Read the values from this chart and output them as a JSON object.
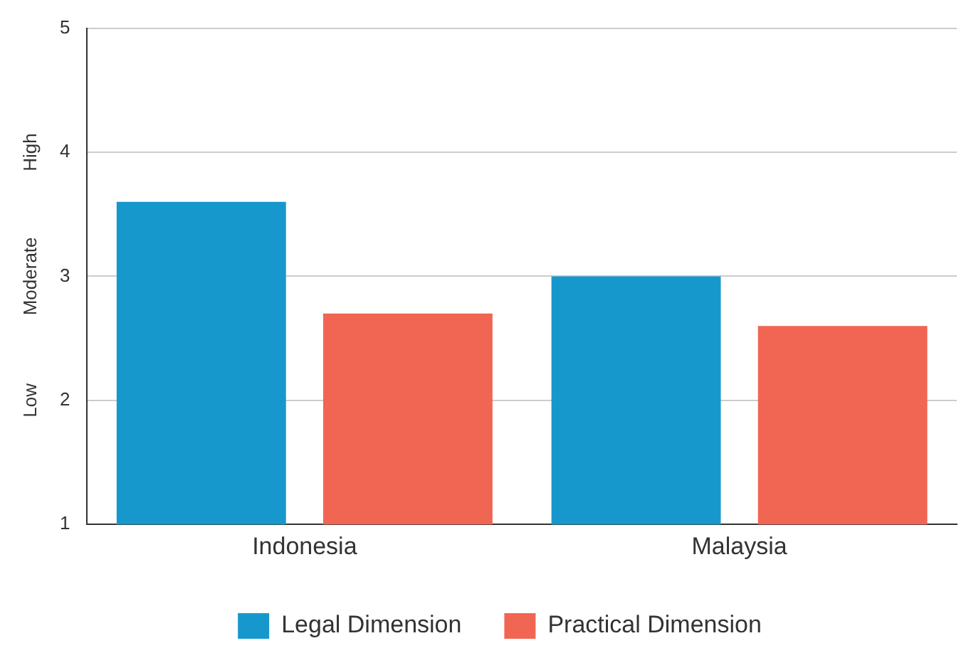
{
  "chart_data": {
    "type": "bar",
    "categories": [
      "Indonesia",
      "Malaysia"
    ],
    "series": [
      {
        "name": "Legal Dimension",
        "color": "#1798cc",
        "values": [
          3.6,
          3.0
        ]
      },
      {
        "name": "Practical Dimension",
        "color": "#f06653",
        "values": [
          2.7,
          2.6
        ]
      }
    ],
    "ylim": [
      1,
      5
    ],
    "yticks": [
      1,
      2,
      3,
      4,
      5
    ],
    "grid": "y",
    "legend": "bottom",
    "annotations": [
      "Low",
      "Moderate",
      "High"
    ]
  }
}
